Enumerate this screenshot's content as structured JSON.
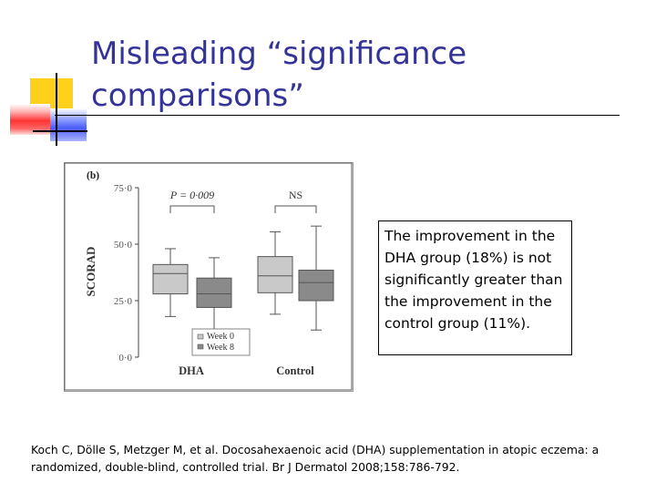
{
  "slide": {
    "title": "Misleading “significance\ncomparisons”",
    "note": "The improvement in the DHA group (18%) is not significantly greater than the improvement in the control group (11%).",
    "citation": "Koch C, Dölle S, Metzger M, et al. Docosahexaenoic acid (DHA) supplementation in atopic eczema: a randomized, double-blind, controlled trial. Br J Dermatol 2008;158:786-792."
  },
  "chart_data": {
    "type": "box",
    "panel_label": "(b)",
    "ylabel": "SCORAD",
    "ylim": [
      0,
      75
    ],
    "yticks": [
      "0·0",
      "25·0",
      "50·0",
      "75·0"
    ],
    "ytick_values": [
      0,
      25,
      50,
      75
    ],
    "groups": [
      "DHA",
      "Control"
    ],
    "series": [
      {
        "name": "Week 0",
        "color": "#c9c9c9",
        "boxes": [
          {
            "group": "DHA",
            "min": 18,
            "q1": 28,
            "median": 37,
            "q3": 41,
            "max": 48
          },
          {
            "group": "Control",
            "min": 19,
            "q1": 28.5,
            "median": 36,
            "q3": 44.5,
            "max": 55.5
          }
        ]
      },
      {
        "name": "Week 8",
        "color": "#8a8a8a",
        "boxes": [
          {
            "group": "DHA",
            "min": 11,
            "q1": 22,
            "median": 28,
            "q3": 35,
            "max": 44
          },
          {
            "group": "Control",
            "min": 12,
            "q1": 25,
            "median": 33,
            "q3": 38.5,
            "max": 58
          }
        ]
      }
    ],
    "annotations": [
      {
        "text": "P = 0·009",
        "group": "DHA"
      },
      {
        "text": "NS",
        "group": "Control"
      }
    ],
    "legend": {
      "position": "bottom-center",
      "entries": [
        "Week 0",
        "Week 8"
      ]
    }
  }
}
